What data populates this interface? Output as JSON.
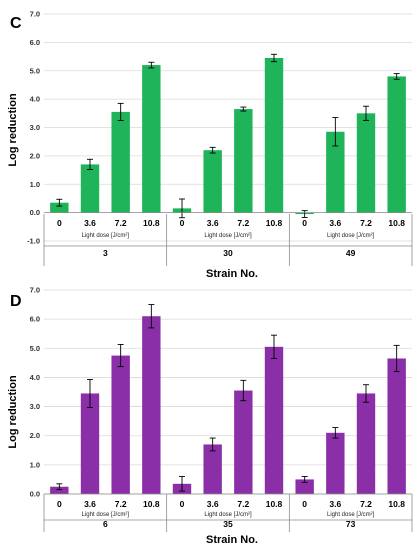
{
  "chart_data": [
    {
      "type": "bar",
      "panel": "C",
      "ylabel": "Log reduction",
      "xlabel": "Strain No.",
      "dose_label": "Light dose [J/cm²]",
      "ylim": [
        -1.0,
        7.0
      ],
      "yticks": [
        "-1.0",
        "0.0",
        "1.0",
        "2.0",
        "3.0",
        "4.0",
        "5.0",
        "6.0",
        "7.0"
      ],
      "grid": true,
      "color": "#1fb45a",
      "groups": [
        {
          "strain": "3",
          "categories": [
            "0",
            "3.6",
            "7.2",
            "10.8"
          ],
          "values": [
            0.35,
            1.7,
            3.55,
            5.2
          ],
          "errors": [
            0.12,
            0.18,
            0.3,
            0.1
          ]
        },
        {
          "strain": "30",
          "categories": [
            "0",
            "3.6",
            "7.2",
            "10.8"
          ],
          "values": [
            0.15,
            2.2,
            3.65,
            5.45
          ],
          "errors": [
            0.33,
            0.1,
            0.07,
            0.13
          ]
        },
        {
          "strain": "49",
          "categories": [
            "0",
            "3.6",
            "7.2",
            "10.8"
          ],
          "values": [
            -0.05,
            2.85,
            3.5,
            4.8
          ],
          "errors": [
            0.12,
            0.5,
            0.25,
            0.1
          ]
        }
      ]
    },
    {
      "type": "bar",
      "panel": "D",
      "ylabel": "Log reduction",
      "xlabel": "Strain No.",
      "dose_label": "Light dose [J/cm²]",
      "ylim": [
        0.0,
        7.0
      ],
      "yticks": [
        "0.0",
        "1.0",
        "2.0",
        "3.0",
        "4.0",
        "5.0",
        "6.0",
        "7.0"
      ],
      "grid": true,
      "color": "#8b2fa8",
      "groups": [
        {
          "strain": "6",
          "categories": [
            "0",
            "3.6",
            "7.2",
            "10.8"
          ],
          "values": [
            0.25,
            3.45,
            4.75,
            6.1
          ],
          "errors": [
            0.1,
            0.48,
            0.38,
            0.4
          ]
        },
        {
          "strain": "35",
          "categories": [
            "0",
            "3.6",
            "7.2",
            "10.8"
          ],
          "values": [
            0.35,
            1.7,
            3.55,
            5.05
          ],
          "errors": [
            0.25,
            0.22,
            0.35,
            0.4
          ]
        },
        {
          "strain": "73",
          "categories": [
            "0",
            "3.6",
            "7.2",
            "10.8"
          ],
          "values": [
            0.5,
            2.1,
            3.45,
            4.65
          ],
          "errors": [
            0.1,
            0.18,
            0.3,
            0.45
          ]
        }
      ]
    }
  ]
}
